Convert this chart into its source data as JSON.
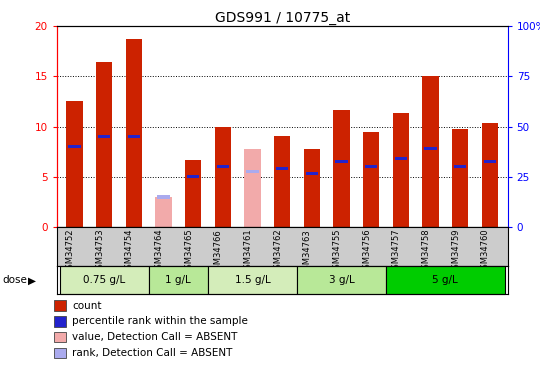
{
  "title": "GDS991 / 10775_at",
  "samples": [
    "GSM34752",
    "GSM34753",
    "GSM34754",
    "GSM34764",
    "GSM34765",
    "GSM34766",
    "GSM34761",
    "GSM34762",
    "GSM34763",
    "GSM34755",
    "GSM34756",
    "GSM34757",
    "GSM34758",
    "GSM34759",
    "GSM34760"
  ],
  "count_values": [
    12.5,
    16.4,
    18.7,
    0,
    6.7,
    10.0,
    0,
    9.1,
    7.8,
    11.7,
    9.5,
    11.4,
    15.0,
    9.8,
    10.4
  ],
  "absent_values": [
    0,
    0,
    0,
    3.0,
    0,
    0,
    7.8,
    0,
    0,
    0,
    0,
    0,
    0,
    0,
    0
  ],
  "percentile_values": [
    8.0,
    9.0,
    9.0,
    0,
    5.0,
    6.0,
    0,
    5.8,
    5.3,
    6.5,
    6.0,
    6.8,
    7.8,
    6.0,
    6.5
  ],
  "absent_rank_values": [
    0,
    0,
    0,
    3.0,
    0,
    0,
    5.5,
    0,
    0,
    0,
    0,
    0,
    0,
    0,
    0
  ],
  "doses": [
    {
      "label": "0.75 g/L",
      "start": 0,
      "end": 3,
      "color": "#d4edba"
    },
    {
      "label": "1 g/L",
      "start": 3,
      "end": 5,
      "color": "#b8e898"
    },
    {
      "label": "1.5 g/L",
      "start": 5,
      "end": 8,
      "color": "#d4edba"
    },
    {
      "label": "3 g/L",
      "start": 8,
      "end": 11,
      "color": "#b8e898"
    },
    {
      "label": "5 g/L",
      "start": 11,
      "end": 15,
      "color": "#00cc00"
    }
  ],
  "ylim_left": [
    0,
    20
  ],
  "ylim_right": [
    0,
    100
  ],
  "yticks_left": [
    0,
    5,
    10,
    15,
    20
  ],
  "yticks_right": [
    0,
    25,
    50,
    75,
    100
  ],
  "bar_color_red": "#cc2200",
  "bar_color_absent": "#f2aaaa",
  "bar_color_blue": "#2222cc",
  "bar_color_absent_rank": "#aaaaee",
  "background_plot": "#ffffff",
  "background_label": "#cccccc",
  "legend_items": [
    {
      "color": "#cc2200",
      "label": "count"
    },
    {
      "color": "#2222cc",
      "label": "percentile rank within the sample"
    },
    {
      "color": "#f2aaaa",
      "label": "value, Detection Call = ABSENT"
    },
    {
      "color": "#aaaaee",
      "label": "rank, Detection Call = ABSENT"
    }
  ]
}
